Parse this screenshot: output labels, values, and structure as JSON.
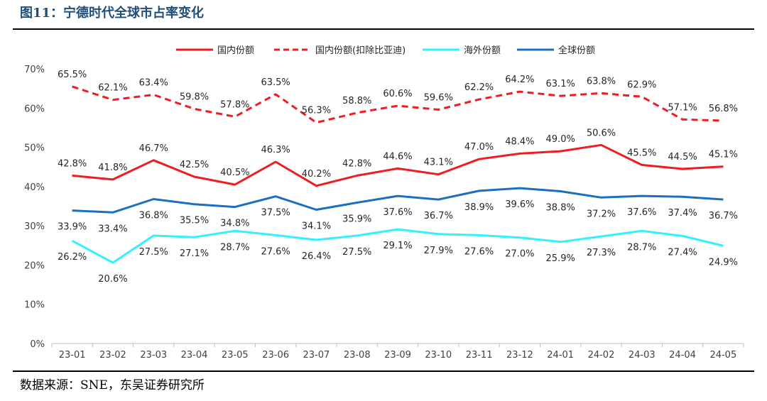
{
  "figure": {
    "title": "图11：宁德时代全球市占率变化",
    "source": "数据来源：SNE，东吴证券研究所"
  },
  "chart_data": {
    "type": "line",
    "categories": [
      "23-01",
      "23-02",
      "23-03",
      "23-04",
      "23-05",
      "23-06",
      "23-07",
      "23-08",
      "23-09",
      "23-10",
      "23-11",
      "23-12",
      "24-01",
      "24-02",
      "24-03",
      "24-04",
      "24-05"
    ],
    "ylim": [
      0,
      70
    ],
    "yticks": [
      0,
      10,
      20,
      30,
      40,
      50,
      60,
      70
    ],
    "ytick_labels": [
      "0%",
      "10%",
      "20%",
      "30%",
      "40%",
      "50%",
      "60%",
      "70%"
    ],
    "grid": false,
    "legend_position": "top",
    "series": [
      {
        "name": "国内份额",
        "color": "#ee1d23",
        "line_style": "solid",
        "label_position": "above",
        "values": [
          42.8,
          41.8,
          46.7,
          42.5,
          40.5,
          46.3,
          40.2,
          42.8,
          44.6,
          43.1,
          47.0,
          48.4,
          49.0,
          50.6,
          45.5,
          44.5,
          45.1
        ],
        "labels": [
          "42.8%",
          "41.8%",
          "46.7%",
          "42.5%",
          "40.5%",
          "46.3%",
          "40.2%",
          "42.8%",
          "44.6%",
          "43.1%",
          "47.0%",
          "48.4%",
          "49.0%",
          "50.6%",
          "45.5%",
          "44.5%",
          "45.1%"
        ]
      },
      {
        "name": "国内份额(扣除比亚迪)",
        "color": "#ee1d23",
        "line_style": "dashed",
        "label_position": "above",
        "values": [
          65.5,
          62.1,
          63.4,
          59.8,
          57.8,
          63.5,
          56.3,
          58.8,
          60.6,
          59.6,
          62.2,
          64.2,
          63.1,
          63.8,
          62.9,
          57.1,
          56.8
        ],
        "labels": [
          "65.5%",
          "62.1%",
          "63.4%",
          "59.8%",
          "57.8%",
          "63.5%",
          "56.3%",
          "58.8%",
          "60.6%",
          "59.6%",
          "62.2%",
          "64.2%",
          "63.1%",
          "63.8%",
          "62.9%",
          "57.1%",
          "56.8%"
        ]
      },
      {
        "name": "海外份额",
        "color": "#33f0ff",
        "line_style": "solid",
        "label_position": "below",
        "values": [
          26.2,
          20.6,
          27.5,
          27.1,
          28.7,
          27.6,
          26.4,
          27.5,
          29.1,
          27.9,
          27.6,
          27.0,
          25.9,
          27.3,
          28.7,
          27.4,
          24.9
        ],
        "labels": [
          "26.2%",
          "20.6%",
          "27.5%",
          "27.1%",
          "28.7%",
          "27.6%",
          "26.4%",
          "27.5%",
          "29.1%",
          "27.9%",
          "27.6%",
          "27.0%",
          "25.9%",
          "27.3%",
          "28.7%",
          "27.4%",
          "24.9%"
        ]
      },
      {
        "name": "全球份额",
        "color": "#1a6fc0",
        "line_style": "solid",
        "label_position": "below",
        "values": [
          33.9,
          33.4,
          36.8,
          35.5,
          34.8,
          37.5,
          34.1,
          35.9,
          37.6,
          36.7,
          38.9,
          39.6,
          38.8,
          37.2,
          37.6,
          37.4,
          36.7
        ],
        "labels": [
          "33.9%",
          "33.4%",
          "36.8%",
          "35.5%",
          "34.8%",
          "37.5%",
          "34.1%",
          "35.9%",
          "37.6%",
          "36.7%",
          "38.9%",
          "39.6%",
          "38.8%",
          "37.2%",
          "37.6%",
          "37.4%",
          "36.7%"
        ]
      }
    ]
  }
}
